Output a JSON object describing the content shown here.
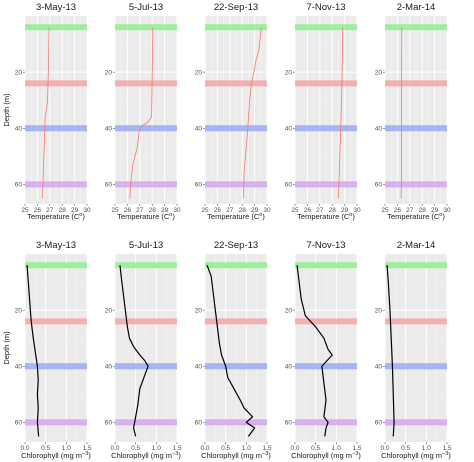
{
  "chart_data": {
    "type": "line",
    "layout": "small-multiples",
    "dates": [
      "3-May-13",
      "5-Jul-13",
      "22-Sep-13",
      "7-Nov-13",
      "2-Mar-14"
    ],
    "depth_axis": {
      "label": "Depth (m)",
      "ylim": [
        0,
        67
      ],
      "inverted": true,
      "ticks": [
        20,
        40,
        60
      ]
    },
    "bands": [
      {
        "depth": 4,
        "color": "#90ee90"
      },
      {
        "depth": 24,
        "color": "#f4a6a6"
      },
      {
        "depth": 40,
        "color": "#9aa9f2"
      },
      {
        "depth": 60,
        "color": "#d4a5ee"
      }
    ],
    "rows": [
      {
        "variable": "temperature",
        "xlabel": "Temperature (C",
        "xlabel_sup": "o",
        "xlabel_end": ")",
        "xlim": [
          25,
          30
        ],
        "ticks": [
          25,
          26,
          27,
          28,
          29,
          30
        ],
        "line_color": "#f8766d",
        "profiles": [
          [
            [
              26.95,
              4
            ],
            [
              26.92,
              10
            ],
            [
              26.88,
              20
            ],
            [
              26.82,
              30
            ],
            [
              26.75,
              33
            ],
            [
              26.62,
              36
            ],
            [
              26.58,
              42
            ],
            [
              26.52,
              50
            ],
            [
              26.45,
              60
            ],
            [
              26.4,
              65
            ]
          ],
          [
            [
              28.05,
              4
            ],
            [
              28.02,
              15
            ],
            [
              27.98,
              28
            ],
            [
              27.95,
              36
            ],
            [
              27.6,
              38
            ],
            [
              27.2,
              39
            ],
            [
              26.95,
              41
            ],
            [
              26.8,
              47
            ],
            [
              26.6,
              50
            ],
            [
              26.45,
              53
            ],
            [
              26.3,
              58
            ],
            [
              26.2,
              65
            ]
          ],
          [
            [
              29.55,
              4
            ],
            [
              29.45,
              8
            ],
            [
              29.35,
              12
            ],
            [
              29.1,
              16
            ],
            [
              28.95,
              20
            ],
            [
              28.75,
              24
            ],
            [
              28.6,
              30
            ],
            [
              28.45,
              40
            ],
            [
              28.3,
              48
            ],
            [
              28.15,
              56
            ],
            [
              28.1,
              65
            ]
          ],
          [
            [
              28.85,
              4
            ],
            [
              28.82,
              15
            ],
            [
              28.78,
              25
            ],
            [
              28.72,
              35
            ],
            [
              28.65,
              45
            ],
            [
              28.58,
              55
            ],
            [
              28.5,
              65
            ]
          ],
          [
            [
              26.35,
              4
            ],
            [
              26.34,
              20
            ],
            [
              26.33,
              40
            ],
            [
              26.32,
              60
            ],
            [
              26.3,
              65
            ]
          ]
        ]
      },
      {
        "variable": "chlorophyll",
        "xlabel": "Chlorophyll (mg m",
        "xlabel_sup": "−3",
        "xlabel_end": ")",
        "xlim": [
          0,
          1.5
        ],
        "ticks": [
          0.0,
          0.5,
          1.0,
          1.5
        ],
        "tick_labels": [
          "0.0",
          "0.5",
          "1.0",
          "1.5"
        ],
        "line_color": "#000000",
        "profiles": [
          [
            [
              0.05,
              4
            ],
            [
              0.08,
              10
            ],
            [
              0.12,
              18
            ],
            [
              0.15,
              24
            ],
            [
              0.2,
              30
            ],
            [
              0.25,
              35
            ],
            [
              0.3,
              40
            ],
            [
              0.32,
              45
            ],
            [
              0.3,
              50
            ],
            [
              0.32,
              55
            ],
            [
              0.3,
              60
            ],
            [
              0.33,
              65
            ]
          ],
          [
            [
              0.12,
              4
            ],
            [
              0.15,
              8
            ],
            [
              0.2,
              14
            ],
            [
              0.25,
              20
            ],
            [
              0.3,
              26
            ],
            [
              0.35,
              30
            ],
            [
              0.45,
              33
            ],
            [
              0.6,
              36
            ],
            [
              0.72,
              38
            ],
            [
              0.8,
              40
            ],
            [
              0.7,
              44
            ],
            [
              0.6,
              48
            ],
            [
              0.55,
              54
            ],
            [
              0.5,
              58
            ],
            [
              0.45,
              62
            ],
            [
              0.5,
              65
            ]
          ],
          [
            [
              0.05,
              4
            ],
            [
              0.15,
              8
            ],
            [
              0.2,
              14
            ],
            [
              0.25,
              20
            ],
            [
              0.3,
              26
            ],
            [
              0.35,
              32
            ],
            [
              0.4,
              36
            ],
            [
              0.5,
              40
            ],
            [
              0.55,
              44
            ],
            [
              0.7,
              48
            ],
            [
              0.85,
              52
            ],
            [
              0.95,
              55
            ],
            [
              1.15,
              58
            ],
            [
              1.0,
              60
            ],
            [
              1.2,
              62
            ],
            [
              1.05,
              65
            ]
          ],
          [
            [
              0.05,
              4
            ],
            [
              0.1,
              10
            ],
            [
              0.15,
              16
            ],
            [
              0.25,
              22
            ],
            [
              0.5,
              26
            ],
            [
              0.7,
              30
            ],
            [
              0.8,
              34
            ],
            [
              0.9,
              36
            ],
            [
              0.65,
              40
            ],
            [
              0.7,
              46
            ],
            [
              0.75,
              52
            ],
            [
              0.7,
              58
            ],
            [
              0.8,
              60
            ],
            [
              0.75,
              62
            ],
            [
              0.72,
              65
            ]
          ],
          [
            [
              0.05,
              4
            ],
            [
              0.08,
              10
            ],
            [
              0.12,
              20
            ],
            [
              0.15,
              30
            ],
            [
              0.18,
              40
            ],
            [
              0.2,
              50
            ],
            [
              0.22,
              60
            ],
            [
              0.2,
              65
            ]
          ]
        ]
      }
    ]
  }
}
